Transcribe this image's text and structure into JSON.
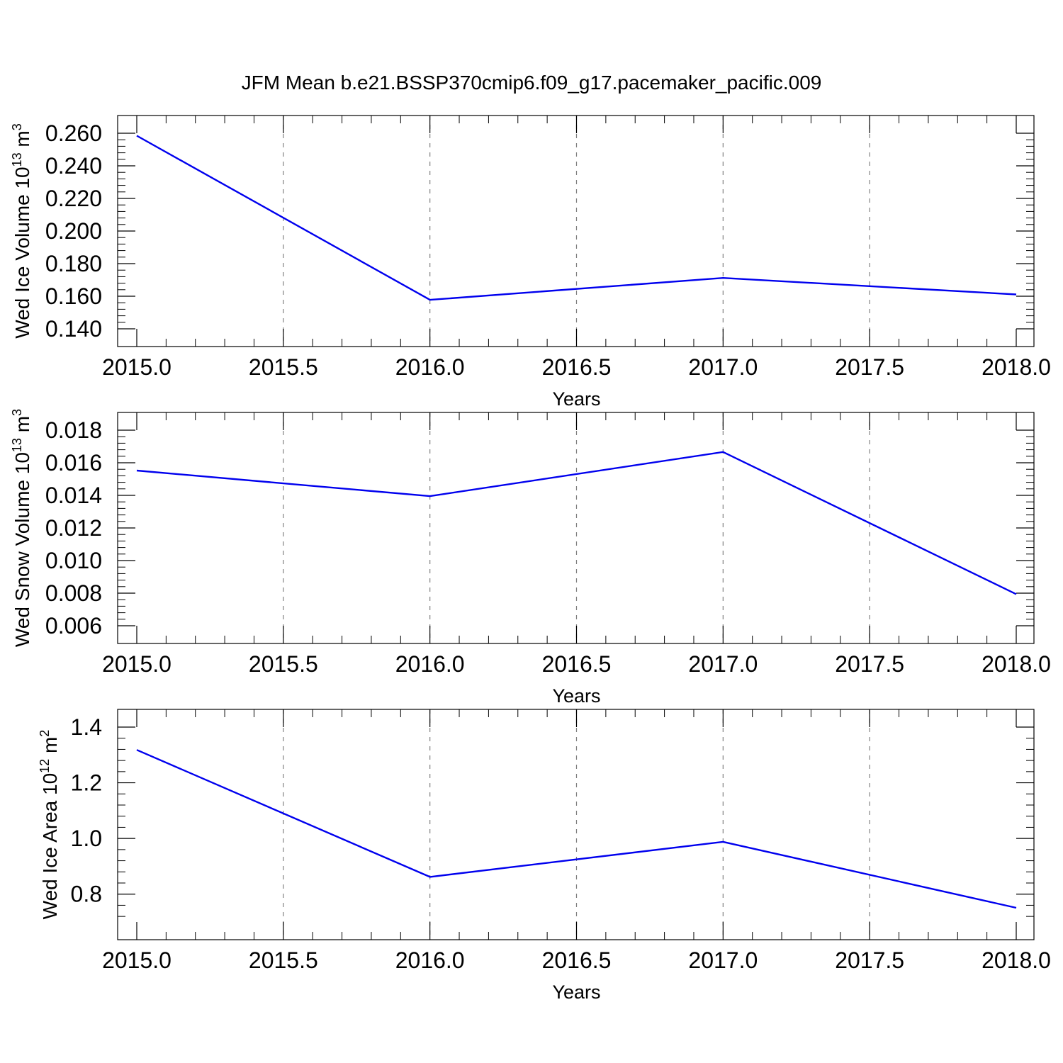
{
  "title": "JFM Mean b.e21.BSSP370cmip6.f09_g17.pacemaker_pacific.009",
  "chart_data": [
    {
      "type": "line",
      "ylabel": {
        "main": "Wed Ice Volume 10",
        "sup": "13",
        "unit": " m",
        "unit_sup": "3"
      },
      "xlabel": "Years",
      "xlim": [
        2015.0,
        2018.0
      ],
      "ylim": [
        0.14,
        0.26
      ],
      "xticks": [
        2015.0,
        2015.5,
        2016.0,
        2016.5,
        2017.0,
        2017.5,
        2018.0
      ],
      "xtick_labels": [
        "2015.0",
        "2015.5",
        "2016.0",
        "2016.5",
        "2017.0",
        "2017.5",
        "2018.0"
      ],
      "yticks": [
        0.14,
        0.16,
        0.18,
        0.2,
        0.22,
        0.24,
        0.26
      ],
      "ytick_labels": [
        "0.140",
        "0.160",
        "0.180",
        "0.200",
        "0.220",
        "0.240",
        "0.260"
      ],
      "grid": "vertical-dashed",
      "color": "#0000ee",
      "x": [
        2015,
        2016,
        2017,
        2018
      ],
      "y": [
        0.2585,
        0.1578,
        0.1712,
        0.1611
      ]
    },
    {
      "type": "line",
      "ylabel": {
        "main": "Wed Snow Volume 10",
        "sup": "13",
        "unit": " m",
        "unit_sup": "3"
      },
      "xlabel": "Years",
      "xlim": [
        2015.0,
        2018.0
      ],
      "ylim": [
        0.006,
        0.018
      ],
      "xticks": [
        2015.0,
        2015.5,
        2016.0,
        2016.5,
        2017.0,
        2017.5,
        2018.0
      ],
      "xtick_labels": [
        "2015.0",
        "2015.5",
        "2016.0",
        "2016.5",
        "2017.0",
        "2017.5",
        "2018.0"
      ],
      "yticks": [
        0.006,
        0.008,
        0.01,
        0.012,
        0.014,
        0.016,
        0.018
      ],
      "ytick_labels": [
        "0.006",
        "0.008",
        "0.010",
        "0.012",
        "0.014",
        "0.016",
        "0.018"
      ],
      "grid": "vertical-dashed",
      "color": "#0000ee",
      "x": [
        2015,
        2016,
        2017,
        2018
      ],
      "y": [
        0.01552,
        0.01395,
        0.01666,
        0.00794
      ]
    },
    {
      "type": "line",
      "ylabel": {
        "main": "Wed Ice Area 10",
        "sup": "12",
        "unit": " m",
        "unit_sup": "2"
      },
      "xlabel": "Years",
      "xlim": [
        2015.0,
        2018.0
      ],
      "ylim": [
        0.7,
        1.4
      ],
      "xticks": [
        2015.0,
        2015.5,
        2016.0,
        2016.5,
        2017.0,
        2017.5,
        2018.0
      ],
      "xtick_labels": [
        "2015.0",
        "2015.5",
        "2016.0",
        "2016.5",
        "2017.0",
        "2017.5",
        "2018.0"
      ],
      "yticks": [
        0.8,
        1.0,
        1.2,
        1.4
      ],
      "ytick_labels": [
        "0.8",
        "1.0",
        "1.2",
        "1.4"
      ],
      "grid": "vertical-dashed",
      "color": "#0000ee",
      "x": [
        2015,
        2016,
        2017,
        2018
      ],
      "y": [
        1.318,
        0.862,
        0.988,
        0.751
      ]
    }
  ]
}
